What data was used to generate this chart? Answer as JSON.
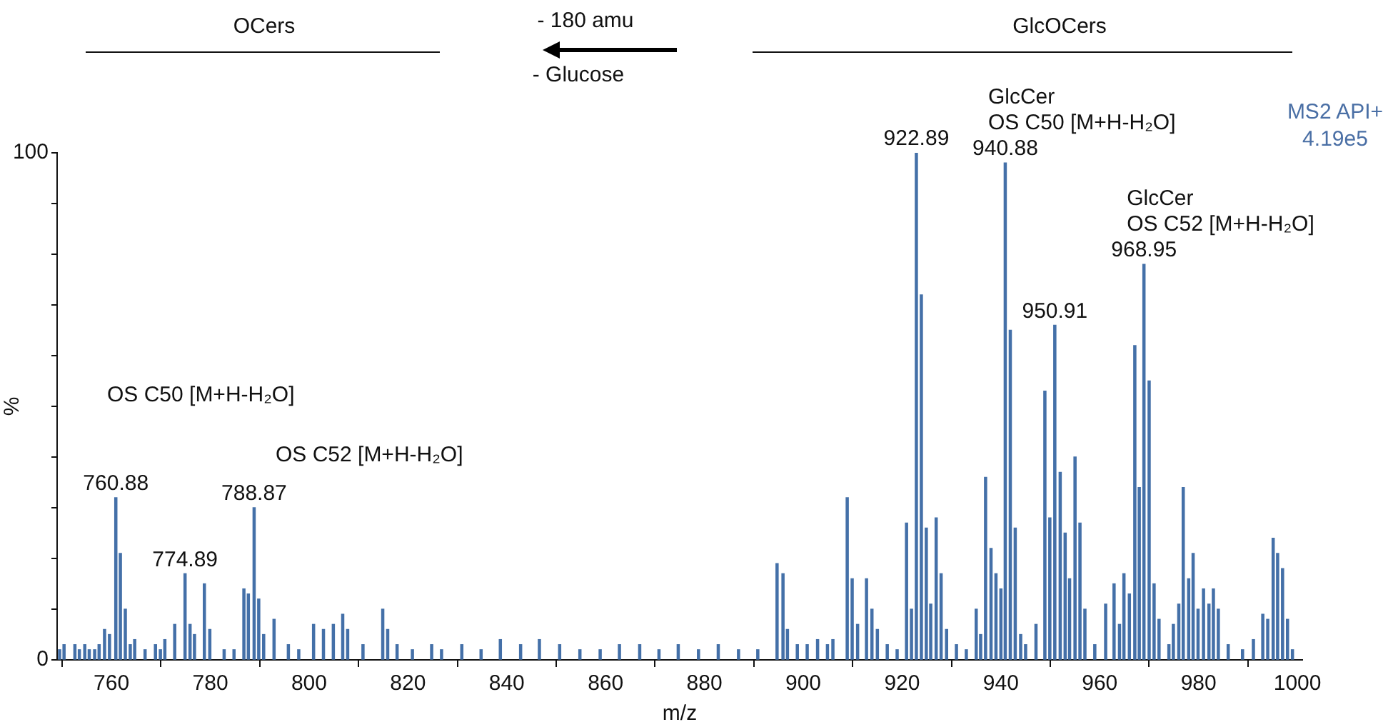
{
  "chart_data": {
    "type": "bar",
    "xlabel": "m/z",
    "ylabel": "%",
    "color": "#4470a8",
    "x": [
      749.5,
      750.4,
      752.6,
      753.5,
      754.6,
      755.5,
      756.6,
      757.5,
      758.6,
      759.6,
      760.88,
      761.8,
      762.8,
      763.8,
      764.7,
      766.8,
      768.9,
      769.9,
      770.8,
      772.8,
      774.89,
      775.9,
      776.8,
      778.8,
      779.9,
      782.8,
      784.8,
      786.8,
      787.7,
      788.87,
      789.8,
      790.8,
      792.9,
      795.8,
      797.9,
      800.9,
      802.9,
      804.9,
      806.8,
      807.8,
      810.9,
      814.9,
      815.9,
      817.8,
      820.9,
      824.8,
      826.8,
      830.9,
      834.8,
      838.7,
      842.8,
      846.6,
      850.7,
      854.8,
      858.9,
      862.8,
      866.9,
      870.8,
      874.7,
      878.8,
      882.8,
      886.9,
      890.8,
      894.7,
      895.9,
      896.8,
      898.8,
      900.8,
      902.9,
      904.9,
      906.0,
      908.9,
      909.9,
      911.0,
      912.8,
      913.9,
      915.0,
      917.0,
      919.0,
      920.9,
      921.9,
      922.89,
      923.9,
      924.9,
      925.8,
      926.9,
      927.9,
      929.0,
      931.0,
      933.0,
      935.0,
      935.9,
      936.9,
      938.0,
      939.0,
      940.0,
      940.88,
      941.9,
      942.9,
      944.0,
      945.0,
      947.1,
      948.9,
      949.9,
      950.91,
      952.0,
      953.0,
      953.9,
      955.0,
      956.0,
      957.0,
      959.0,
      961.2,
      962.9,
      964.0,
      964.9,
      966.0,
      967.1,
      968.0,
      968.95,
      970.0,
      971.0,
      972.0,
      974.0,
      974.9,
      976.0,
      976.9,
      978.0,
      978.9,
      979.9,
      981.0,
      982.1,
      983.0,
      984.0,
      986.0,
      988.9,
      991.1,
      993.0,
      994.0,
      995.1,
      996.0,
      997.0,
      998.0,
      999.0
    ],
    "values": [
      2,
      3,
      3,
      2,
      3,
      2,
      2,
      3,
      6,
      5,
      32,
      21,
      10,
      3,
      4,
      2,
      3,
      2,
      4,
      7,
      17,
      7,
      5,
      15,
      6,
      2,
      2,
      14,
      13,
      30,
      12,
      5,
      8,
      3,
      2,
      7,
      6,
      7,
      9,
      6,
      3,
      10,
      6,
      3,
      2,
      3,
      2,
      3,
      2,
      4,
      3,
      4,
      3,
      2,
      2,
      3,
      3,
      2,
      3,
      2,
      3,
      2,
      2,
      19,
      17,
      6,
      3,
      3,
      4,
      3,
      4,
      32,
      16,
      7,
      16,
      10,
      6,
      3,
      2,
      27,
      10,
      100,
      72,
      26,
      11,
      28,
      17,
      6,
      3,
      2,
      10,
      5,
      36,
      22,
      17,
      14,
      98,
      65,
      26,
      5,
      3,
      7,
      53,
      28,
      66,
      37,
      25,
      16,
      40,
      27,
      10,
      3,
      11,
      15,
      7,
      17,
      13,
      62,
      34,
      78,
      55,
      15,
      8,
      3,
      7,
      11,
      34,
      16,
      21,
      10,
      14,
      11,
      14,
      10,
      3,
      2,
      4,
      9,
      8,
      24,
      21,
      18,
      8,
      2
    ],
    "xlim": [
      749,
      1001
    ],
    "xticks": [
      760,
      780,
      800,
      820,
      840,
      860,
      880,
      900,
      920,
      940,
      960,
      980,
      1000
    ],
    "ylim": [
      0,
      100
    ],
    "yticks": [
      0,
      {
        "value": 10,
        "label": null
      },
      {
        "value": 20,
        "label": null
      },
      {
        "value": 30,
        "label": null
      },
      {
        "value": 40,
        "label": null
      },
      {
        "value": 50,
        "label": null
      },
      {
        "value": 60,
        "label": null
      },
      {
        "value": 70,
        "label": null
      },
      {
        "value": 80,
        "label": null
      },
      {
        "value": 90,
        "label": null
      },
      100
    ],
    "annotations": [
      "OCers",
      "- 180 amu",
      "- Glucose",
      "GlcOCers",
      "MS2 API+",
      "4.19e5",
      {
        "text": "760.88",
        "x": 760.88,
        "y": 32
      },
      {
        "text": "774.89",
        "x": 774.89,
        "y": 17
      },
      {
        "text": "788.87",
        "x": 788.87,
        "y": 30
      },
      {
        "text": "922.89",
        "x": 922.89,
        "y": 100
      },
      {
        "text": "940.88",
        "x": 940.88,
        "y": 98
      },
      {
        "text": "950.91",
        "x": 950.91,
        "y": 66
      },
      {
        "text": "968.95",
        "x": 968.95,
        "y": 78
      },
      "OS C50 [M+H-H₂O]",
      "OS C52 [M+H-H₂O]",
      {
        "text": "OS C50 [M+H-H₂O]",
        "x": 940.88,
        "y": 98
      },
      {
        "text": "GlcCer",
        "x": 940.88,
        "y": 98
      },
      {
        "text": "OS C52 [M+H-H₂O]",
        "x": 968.95,
        "y": 78
      },
      {
        "text": "GlcCer",
        "x": 968.95,
        "y": 78
      }
    ]
  }
}
